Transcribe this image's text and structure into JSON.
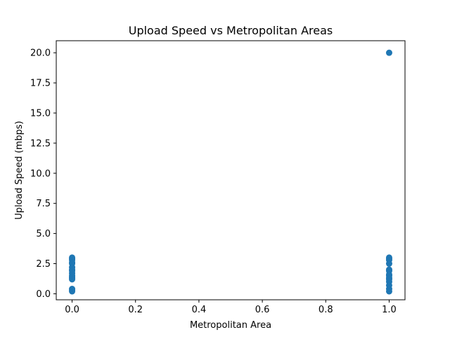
{
  "chart_data": {
    "type": "scatter",
    "title": "Upload Speed vs Metropolitan Areas",
    "xlabel": "Metropolitan Area",
    "ylabel": "Upload Speed (mbps)",
    "xlim": [
      -0.05,
      1.05
    ],
    "ylim": [
      -0.5,
      21.0
    ],
    "x_ticks": [
      0.0,
      0.2,
      0.4,
      0.6,
      0.8,
      1.0
    ],
    "x_tick_labels": [
      "0.0",
      "0.2",
      "0.4",
      "0.6",
      "0.8",
      "1.0"
    ],
    "y_ticks": [
      0.0,
      2.5,
      5.0,
      7.5,
      10.0,
      12.5,
      15.0,
      17.5,
      20.0
    ],
    "y_tick_labels": [
      "0.0",
      "2.5",
      "5.0",
      "7.5",
      "10.0",
      "12.5",
      "15.0",
      "17.5",
      "20.0"
    ],
    "grid": false,
    "marker_color": "#1f77b4",
    "points": [
      {
        "x": 0,
        "y": 3.0
      },
      {
        "x": 0,
        "y": 2.9
      },
      {
        "x": 0,
        "y": 2.8
      },
      {
        "x": 0,
        "y": 2.6
      },
      {
        "x": 0,
        "y": 2.5
      },
      {
        "x": 0,
        "y": 2.2
      },
      {
        "x": 0,
        "y": 2.0
      },
      {
        "x": 0,
        "y": 1.9
      },
      {
        "x": 0,
        "y": 1.7
      },
      {
        "x": 0,
        "y": 1.5
      },
      {
        "x": 0,
        "y": 1.4
      },
      {
        "x": 0,
        "y": 1.3
      },
      {
        "x": 0,
        "y": 1.2
      },
      {
        "x": 0,
        "y": 0.4
      },
      {
        "x": 0,
        "y": 0.3
      },
      {
        "x": 0,
        "y": 0.2
      },
      {
        "x": 1,
        "y": 20.0
      },
      {
        "x": 1,
        "y": 3.0
      },
      {
        "x": 1,
        "y": 2.9
      },
      {
        "x": 1,
        "y": 2.8
      },
      {
        "x": 1,
        "y": 2.5
      },
      {
        "x": 1,
        "y": 2.0
      },
      {
        "x": 1,
        "y": 1.9
      },
      {
        "x": 1,
        "y": 1.6
      },
      {
        "x": 1,
        "y": 1.5
      },
      {
        "x": 1,
        "y": 1.3
      },
      {
        "x": 1,
        "y": 1.2
      },
      {
        "x": 1,
        "y": 1.0
      },
      {
        "x": 1,
        "y": 0.7
      },
      {
        "x": 1,
        "y": 0.4
      },
      {
        "x": 1,
        "y": 0.2
      }
    ]
  }
}
